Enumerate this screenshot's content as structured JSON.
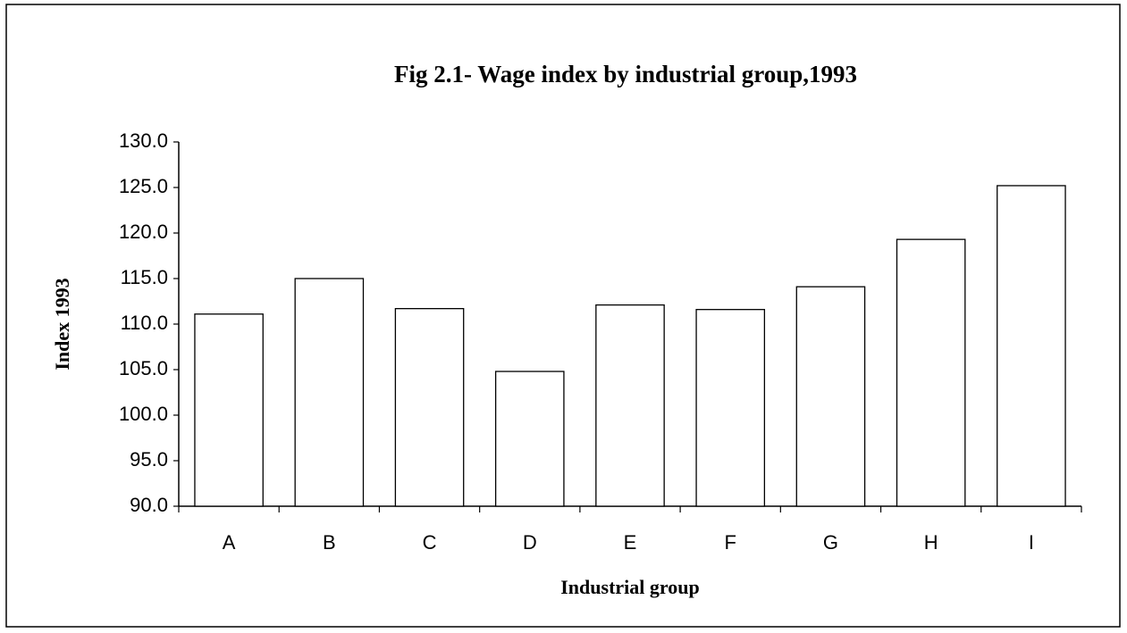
{
  "chart_data": {
    "type": "bar",
    "title": "Fig 2.1- Wage index by industrial group,1993",
    "x_label": "Industrial group",
    "y_label": "Index 1993",
    "categories": [
      "A",
      "B",
      "C",
      "D",
      "E",
      "F",
      "G",
      "H",
      "I"
    ],
    "values": [
      111.1,
      115.0,
      111.7,
      104.8,
      112.1,
      111.6,
      114.1,
      119.3,
      125.2
    ],
    "color": "#ffffff",
    "ylim": [
      90,
      130
    ],
    "yticks": [
      {
        "value": 90,
        "label": "90.0"
      },
      {
        "value": 95,
        "label": "95.0"
      },
      {
        "value": 100,
        "label": "100.0"
      },
      {
        "value": 105,
        "label": "105.0"
      },
      {
        "value": 110,
        "label": "110.0"
      },
      {
        "value": 115,
        "label": "115.0"
      },
      {
        "value": 120,
        "label": "120.0"
      },
      {
        "value": 125,
        "label": "125.0"
      },
      {
        "value": 130,
        "label": "130.0"
      }
    ],
    "grid": false
  }
}
